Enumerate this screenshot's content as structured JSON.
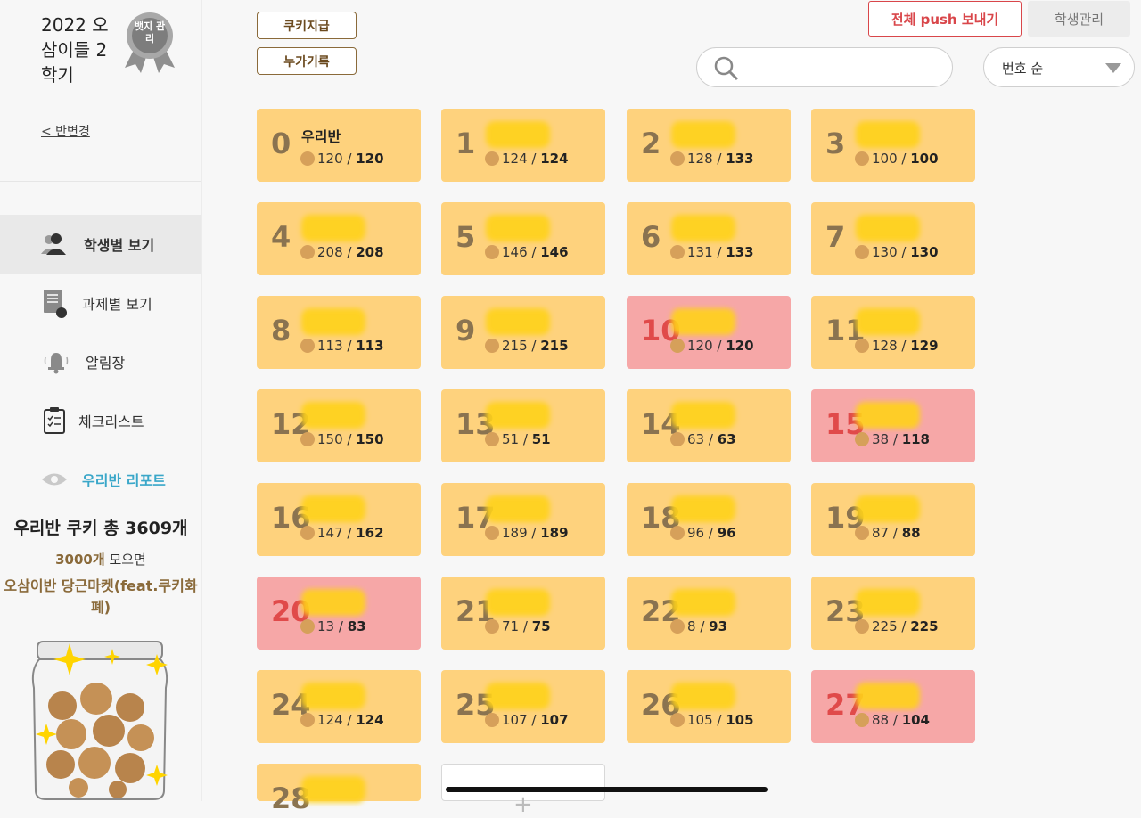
{
  "sidebar": {
    "class_title": "2022 오삼이들 2학기",
    "change_class": "< 반변경",
    "badge_text": "뱃지 관리",
    "nav": [
      {
        "label": "학생별 보기",
        "icon": "students-icon",
        "active": true
      },
      {
        "label": "과제별 보기",
        "icon": "assignment-icon",
        "active": false
      },
      {
        "label": "알림장",
        "icon": "bell-icon",
        "active": false
      },
      {
        "label": "체크리스트",
        "icon": "checklist-icon",
        "active": false
      },
      {
        "label": "우리반 리포트",
        "icon": "eye-icon",
        "active": false
      }
    ],
    "cookie_total": "우리반 쿠키 총 3609개",
    "cookie_goal_num": "3000개",
    "cookie_goal_rest": " 모으면",
    "cookie_market": "오삼이반 당근마켓(feat.쿠키화폐)"
  },
  "toolbar": {
    "give_cookie": "쿠키지급",
    "cumulative_record": "누가기록",
    "push_all": "전체 push 보내기",
    "student_manage": "학생관리",
    "search_placeholder": "",
    "sort_value": "번호 순"
  },
  "colors": {
    "card_normal": "#fed27d",
    "card_alert": "#f6a7a7",
    "accent_red": "#d9464a",
    "report_blue": "#3aa7c9"
  },
  "students": [
    {
      "num": "0",
      "name": "우리반",
      "current": "120",
      "total": "120",
      "alert": false
    },
    {
      "num": "1",
      "name": "",
      "current": "124",
      "total": "124",
      "alert": false
    },
    {
      "num": "2",
      "name": "",
      "current": "128",
      "total": "133",
      "alert": false
    },
    {
      "num": "3",
      "name": "",
      "current": "100",
      "total": "100",
      "alert": false
    },
    {
      "num": "4",
      "name": "",
      "current": "208",
      "total": "208",
      "alert": false
    },
    {
      "num": "5",
      "name": "",
      "current": "146",
      "total": "146",
      "alert": false
    },
    {
      "num": "6",
      "name": "",
      "current": "131",
      "total": "133",
      "alert": false
    },
    {
      "num": "7",
      "name": "",
      "current": "130",
      "total": "130",
      "alert": false
    },
    {
      "num": "8",
      "name": "",
      "current": "113",
      "total": "113",
      "alert": false
    },
    {
      "num": "9",
      "name": "",
      "current": "215",
      "total": "215",
      "alert": false
    },
    {
      "num": "10",
      "name": "",
      "current": "120",
      "total": "120",
      "alert": true
    },
    {
      "num": "11",
      "name": "",
      "current": "128",
      "total": "129",
      "alert": false
    },
    {
      "num": "12",
      "name": "",
      "current": "150",
      "total": "150",
      "alert": false
    },
    {
      "num": "13",
      "name": "",
      "current": "51",
      "total": "51",
      "alert": false
    },
    {
      "num": "14",
      "name": "",
      "current": "63",
      "total": "63",
      "alert": false
    },
    {
      "num": "15",
      "name": "",
      "current": "38",
      "total": "118",
      "alert": true
    },
    {
      "num": "16",
      "name": "",
      "current": "147",
      "total": "162",
      "alert": false
    },
    {
      "num": "17",
      "name": "",
      "current": "189",
      "total": "189",
      "alert": false
    },
    {
      "num": "18",
      "name": "",
      "current": "96",
      "total": "96",
      "alert": false
    },
    {
      "num": "19",
      "name": "",
      "current": "87",
      "total": "88",
      "alert": false
    },
    {
      "num": "20",
      "name": "",
      "current": "13",
      "total": "83",
      "alert": true
    },
    {
      "num": "21",
      "name": "",
      "current": "71",
      "total": "75",
      "alert": false
    },
    {
      "num": "22",
      "name": "",
      "current": "8",
      "total": "93",
      "alert": false
    },
    {
      "num": "23",
      "name": "",
      "current": "225",
      "total": "225",
      "alert": false
    },
    {
      "num": "24",
      "name": "",
      "current": "124",
      "total": "124",
      "alert": false
    },
    {
      "num": "25",
      "name": "",
      "current": "107",
      "total": "107",
      "alert": false
    },
    {
      "num": "26",
      "name": "",
      "current": "105",
      "total": "105",
      "alert": false
    },
    {
      "num": "27",
      "name": "",
      "current": "88",
      "total": "104",
      "alert": true
    },
    {
      "num": "28",
      "name": "",
      "current": "",
      "total": "",
      "alert": false
    }
  ]
}
